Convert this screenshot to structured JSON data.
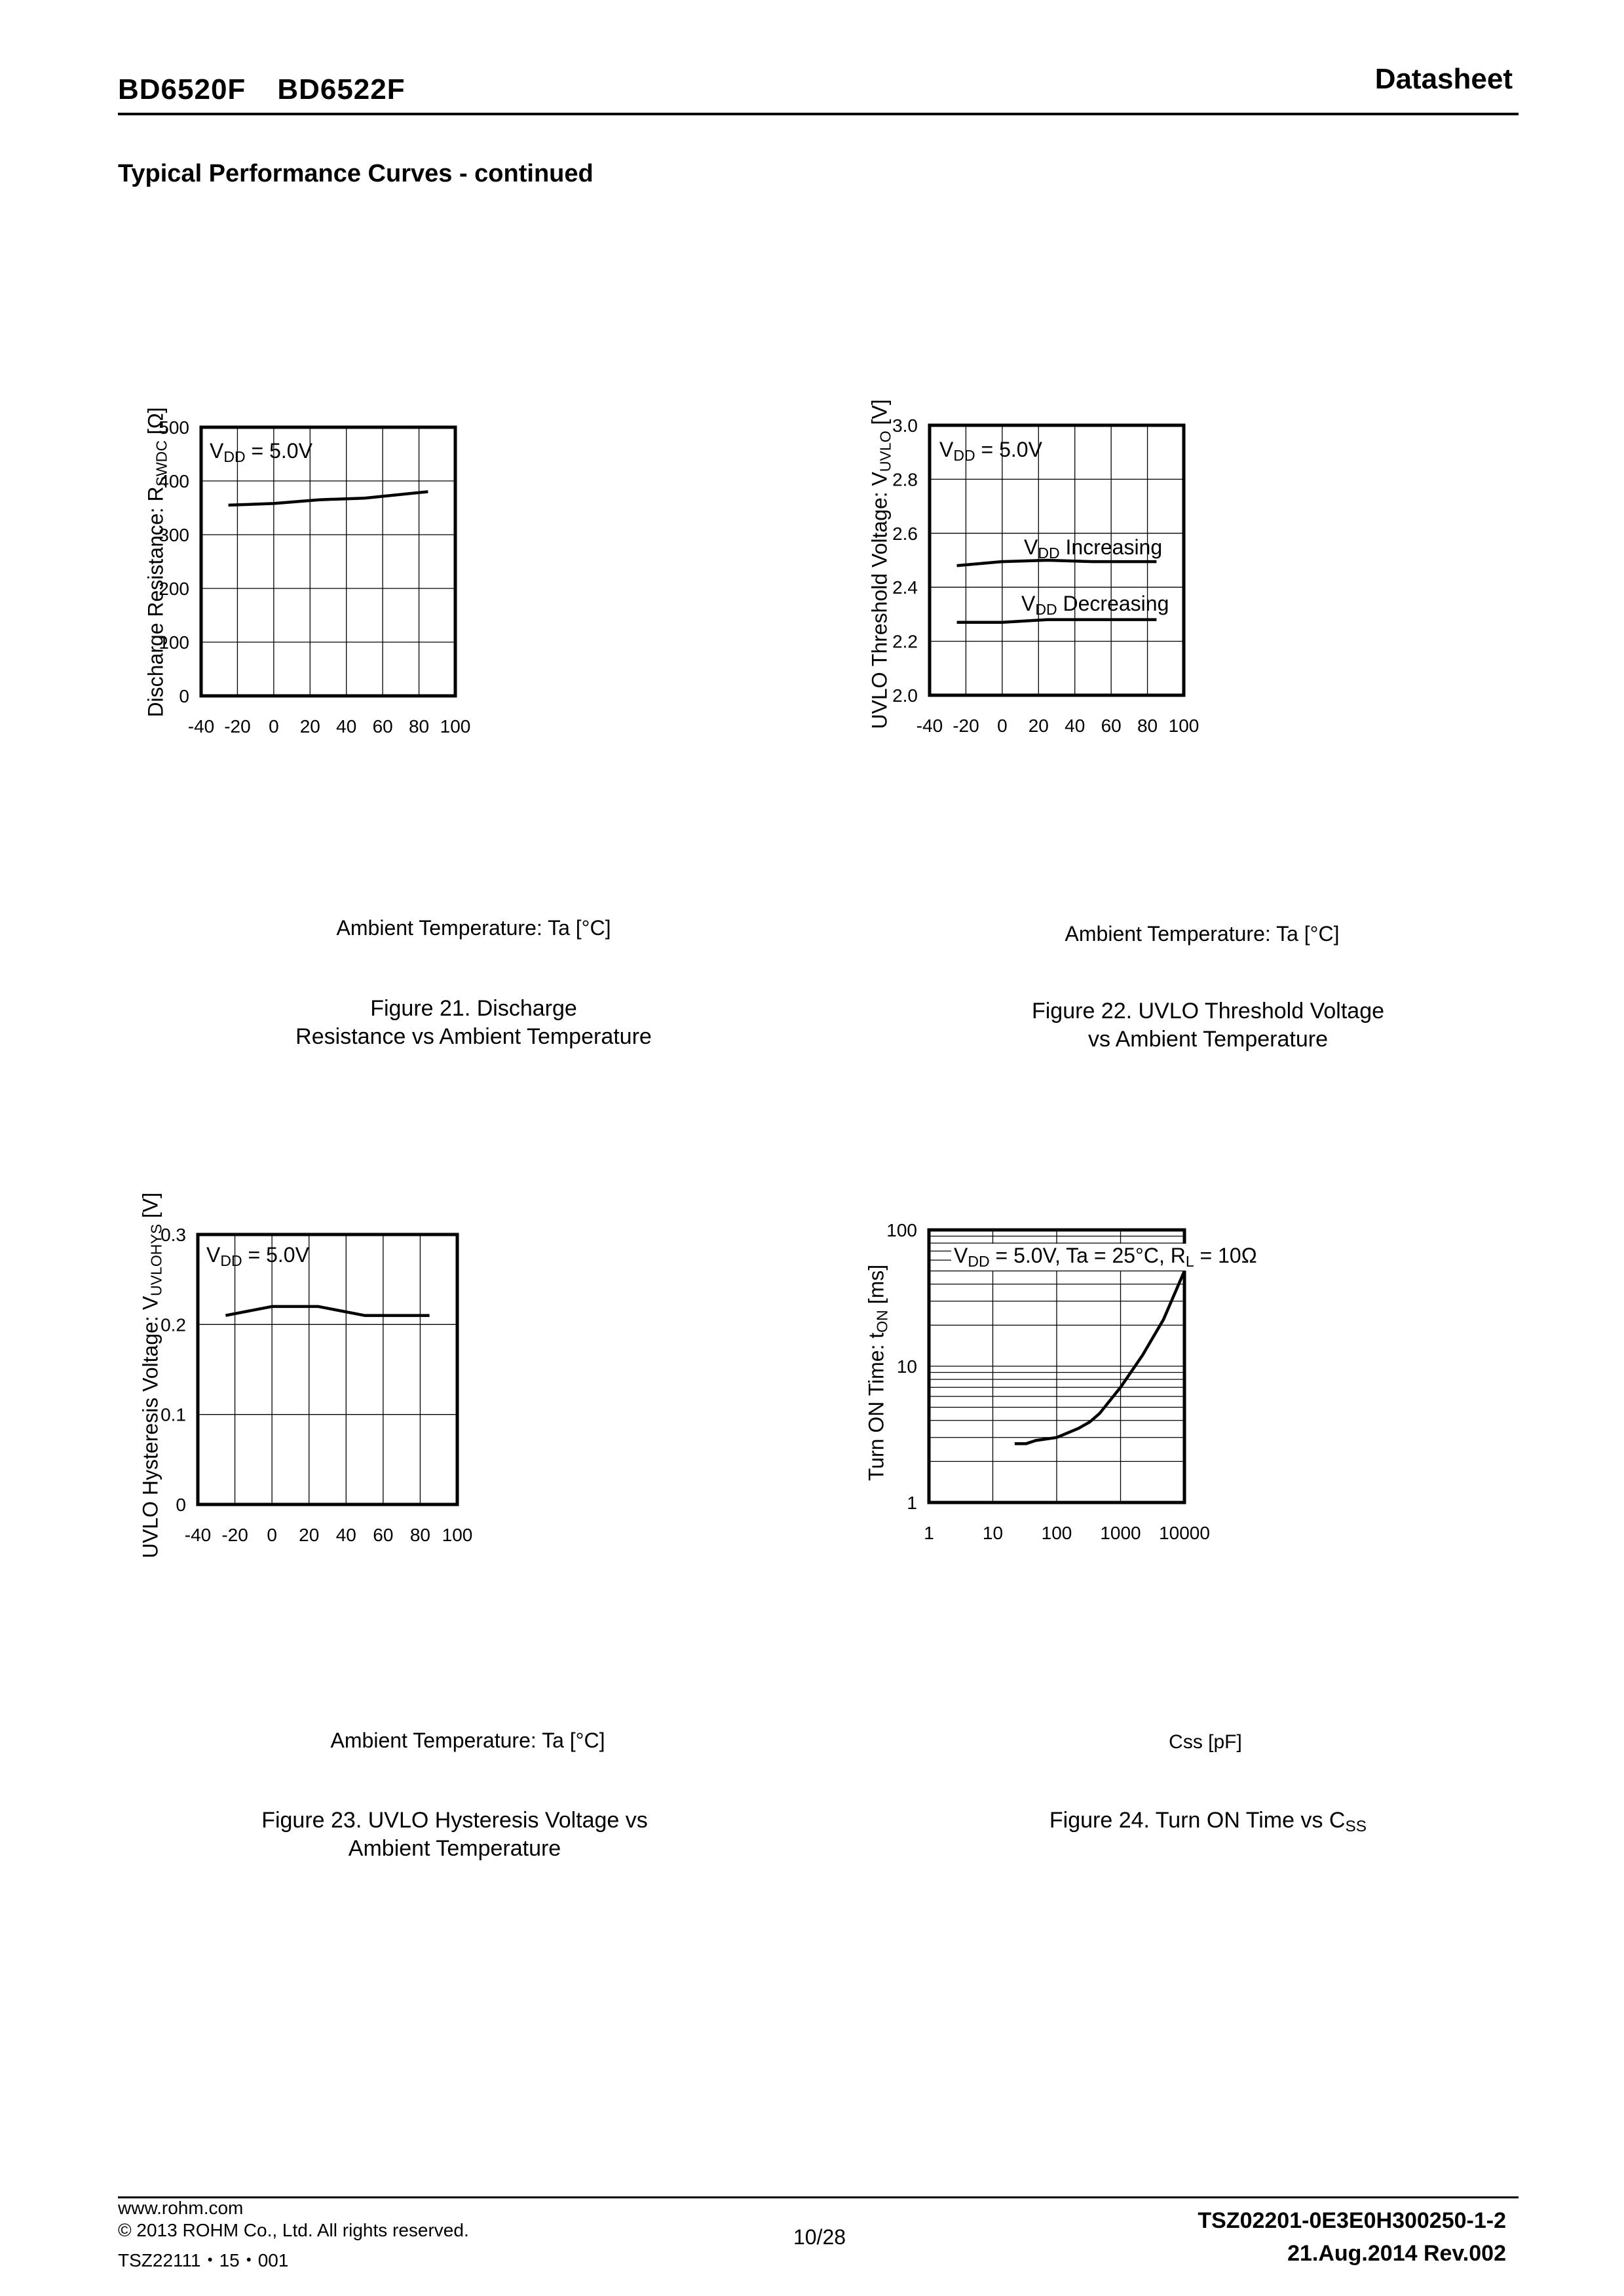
{
  "header": {
    "part1": "BD6520F",
    "part2": "BD6522F",
    "doc_type": "Datasheet"
  },
  "section_title": "Typical Performance Curves - continued",
  "footer": {
    "url": "www.rohm.com",
    "copyright": "© 2013 ROHM Co., Ltd. All rights reserved.",
    "form_code": "TSZ22111・15・001",
    "page": "10/28",
    "doc_number": "TSZ02201-0E3E0H300250-1-2",
    "date_rev": "21.Aug.2014 Rev.002"
  },
  "chart_data": [
    {
      "id": "fig21",
      "type": "line",
      "title_line1": "Figure 21. Discharge",
      "title_line2": "Resistance vs Ambient Temperature",
      "xlabel": "Ambient Temperature: Ta [°C]",
      "ylabel_main": "Discharge Resistance: R",
      "ylabel_sub": "SWDC",
      "ylabel_unit": " [Ω]",
      "xlim": [
        -40,
        100
      ],
      "ylim": [
        0,
        500
      ],
      "xscale": "linear",
      "yscale": "linear",
      "xticks": [
        -40,
        -20,
        0,
        20,
        40,
        60,
        80,
        100
      ],
      "yticks": [
        0,
        100,
        200,
        300,
        400,
        500
      ],
      "ytick_labels": [
        "0",
        "100",
        "200",
        "300",
        "400",
        "500"
      ],
      "grid": true,
      "annotation": {
        "v": "V",
        "sub": "DD",
        "rest": " = 5.0V"
      },
      "series": [
        {
          "name": "VDD = 5.0V",
          "x": [
            -25,
            0,
            25,
            50,
            85
          ],
          "y": [
            355,
            358,
            365,
            368,
            380
          ]
        }
      ]
    },
    {
      "id": "fig22",
      "type": "line",
      "title_line1": "Figure 22. UVLO Threshold Voltage",
      "title_line2": "vs Ambient Temperature",
      "xlabel": "Ambient Temperature: Ta [°C]",
      "ylabel_main": "UVLO Threshold Voltage: V",
      "ylabel_sub": "UVLO",
      "ylabel_unit": " [V]",
      "xlim": [
        -40,
        100
      ],
      "ylim": [
        2.0,
        3.0
      ],
      "xscale": "linear",
      "yscale": "linear",
      "xticks": [
        -40,
        -20,
        0,
        20,
        40,
        60,
        80,
        100
      ],
      "yticks": [
        2.0,
        2.2,
        2.4,
        2.6,
        2.8,
        3.0
      ],
      "ytick_labels": [
        "2.0",
        "2.2",
        "2.4",
        "2.6",
        "2.8",
        "3.0"
      ],
      "grid": true,
      "annotation": {
        "v": "V",
        "sub": "DD",
        "rest": " = 5.0V"
      },
      "series": [
        {
          "name": "VDD Increasing",
          "label_v": "V",
          "label_sub": "DD",
          "label_rest": " Increasing",
          "x": [
            -25,
            0,
            25,
            50,
            85
          ],
          "y": [
            2.48,
            2.495,
            2.5,
            2.495,
            2.495
          ]
        },
        {
          "name": "VDD Decreasing",
          "label_v": "V",
          "label_sub": "DD",
          "label_rest": " Decreasing",
          "x": [
            -25,
            0,
            25,
            50,
            85
          ],
          "y": [
            2.27,
            2.27,
            2.28,
            2.28,
            2.28
          ]
        }
      ]
    },
    {
      "id": "fig23",
      "type": "line",
      "title_line1": "Figure 23. UVLO Hysteresis Voltage vs",
      "title_line2": "Ambient Temperature",
      "xlabel": "Ambient Temperature: Ta [°C]",
      "ylabel_main": "UVLO Hysteresis Voltage: V",
      "ylabel_sub": "UVLOHYS",
      "ylabel_unit": " [V]",
      "xlim": [
        -40,
        100
      ],
      "ylim": [
        0,
        0.3
      ],
      "xscale": "linear",
      "yscale": "linear",
      "xticks": [
        -40,
        -20,
        0,
        20,
        40,
        60,
        80,
        100
      ],
      "yticks": [
        0,
        0.1,
        0.2,
        0.3
      ],
      "ytick_labels": [
        "0",
        "0.1",
        "0.2",
        "0.3"
      ],
      "grid": true,
      "annotation": {
        "v": "V",
        "sub": "DD",
        "rest": " = 5.0V"
      },
      "series": [
        {
          "name": "VDD = 5.0V",
          "x": [
            -25,
            0,
            25,
            50,
            85
          ],
          "y": [
            0.21,
            0.22,
            0.22,
            0.21,
            0.21
          ]
        }
      ]
    },
    {
      "id": "fig24",
      "type": "line",
      "title_line1": "Figure 24. Turn ON Time vs C",
      "title_sub": "SS",
      "xlabel": "Css [pF]",
      "ylabel_main": "Turn ON Time: t",
      "ylabel_sub": "ON",
      "ylabel_unit": " [ms]",
      "xlim": [
        1,
        10000
      ],
      "ylim": [
        1,
        100
      ],
      "xscale": "log",
      "yscale": "log",
      "xticks": [
        1,
        10,
        100,
        1000,
        10000
      ],
      "yticks": [
        1,
        10,
        100
      ],
      "ytick_labels": [
        "1",
        "10",
        "100"
      ],
      "grid": true,
      "annotation": {
        "v": "V",
        "sub": "DD",
        "rest": " = 5.0V, Ta = 25°C, R",
        "sub2": "L",
        "rest2": " = 10Ω"
      },
      "series": [
        {
          "name": "tON",
          "x": [
            22,
            33,
            47,
            100,
            220,
            330,
            470,
            1000,
            2200,
            4700,
            10000
          ],
          "y": [
            2.7,
            2.7,
            2.85,
            3.0,
            3.5,
            3.9,
            4.5,
            7.0,
            12,
            22,
            50
          ]
        }
      ]
    }
  ]
}
